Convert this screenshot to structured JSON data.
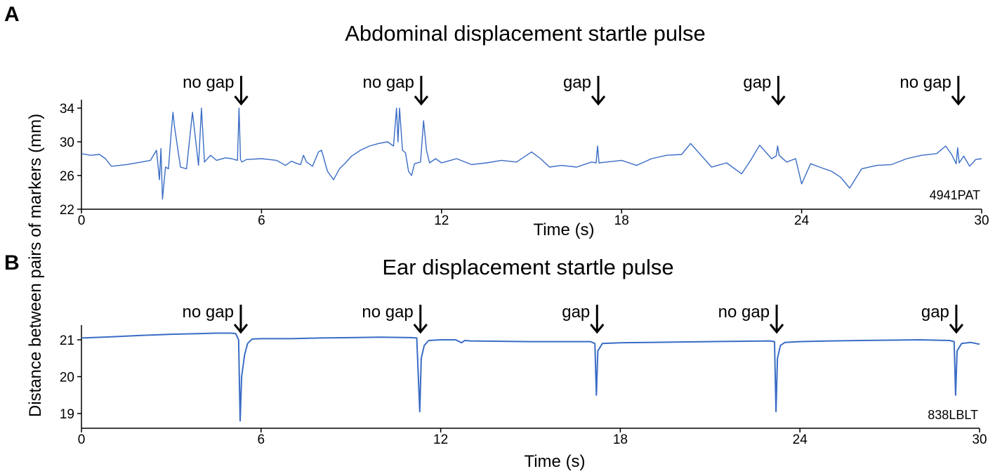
{
  "figure": {
    "y_axis_label": "Distance between pairs of markers (mm)"
  },
  "chart_data": [
    {
      "panel": "A",
      "type": "line",
      "title": "Abdominal displacement startle pulse",
      "xlabel": "Time (s)",
      "xlim": [
        0,
        30
      ],
      "xticks": [
        0,
        6,
        12,
        18,
        24,
        30
      ],
      "ylim": [
        22,
        35
      ],
      "yticks": [
        22,
        26,
        30,
        34
      ],
      "id_label": "4941PAT",
      "series_color": "#3a6cc5",
      "annotations": [
        {
          "label": "no gap",
          "x": 5.3
        },
        {
          "label": "no gap",
          "x": 11.3
        },
        {
          "label": "gap",
          "x": 17.2
        },
        {
          "label": "gap",
          "x": 23.2
        },
        {
          "label": "no gap",
          "x": 29.2
        }
      ],
      "series": [
        {
          "x": [
            0,
            0.3,
            0.6,
            0.8,
            1.0,
            1.5,
            2.0,
            2.3,
            2.5,
            2.6,
            2.65,
            2.7,
            2.8,
            2.9,
            3.0,
            3.05,
            3.1,
            3.3,
            3.5,
            3.7,
            3.9,
            4.0,
            4.1,
            4.3,
            4.5,
            4.8,
            5.0,
            5.2,
            5.25,
            5.3,
            5.35,
            5.5,
            6.0,
            6.5,
            6.7,
            6.8,
            7.0,
            7.2,
            7.3,
            7.4,
            7.5,
            7.7,
            7.9,
            8.0,
            8.2,
            8.4,
            8.6,
            8.8,
            9.0,
            9.3,
            9.6,
            9.9,
            10.2,
            10.4,
            10.5,
            10.55,
            10.6,
            10.7,
            10.8,
            10.9,
            11.0,
            11.1,
            11.3,
            11.4,
            11.5,
            11.6,
            11.8,
            12.0,
            12.5,
            13.0,
            13.5,
            14.0,
            14.5,
            15.0,
            15.3,
            15.6,
            16.0,
            16.5,
            17.0,
            17.15,
            17.2,
            17.25,
            17.5,
            18.0,
            18.5,
            19.0,
            19.5,
            20.0,
            20.3,
            20.6,
            21.0,
            21.5,
            22.0,
            22.3,
            22.6,
            23.0,
            23.15,
            23.2,
            23.25,
            23.5,
            23.8,
            24.0,
            24.3,
            24.6,
            25.0,
            25.3,
            25.6,
            26.0,
            26.5,
            27.0,
            27.5,
            28.0,
            28.5,
            28.8,
            29.0,
            29.15,
            29.2,
            29.25,
            29.4,
            29.6,
            29.8,
            30.0
          ],
          "y": [
            28.6,
            28.4,
            28.5,
            28.0,
            27.1,
            27.3,
            27.6,
            27.8,
            29.0,
            25.5,
            29.2,
            23.2,
            27.0,
            26.8,
            31.5,
            33.5,
            31.8,
            27.0,
            26.8,
            33.5,
            27.2,
            34.0,
            27.6,
            28.4,
            27.8,
            28.1,
            28.0,
            27.8,
            34.0,
            27.9,
            27.6,
            27.9,
            28.0,
            27.8,
            27.4,
            27.2,
            27.7,
            27.4,
            27.3,
            28.4,
            27.6,
            27.1,
            28.8,
            29.0,
            26.5,
            25.5,
            26.8,
            27.5,
            28.3,
            29.0,
            29.5,
            29.8,
            30.0,
            29.5,
            34.0,
            30.0,
            34.0,
            29.0,
            28.7,
            26.5,
            26.0,
            27.4,
            27.6,
            32.5,
            29.0,
            27.5,
            28.0,
            27.5,
            28.0,
            27.3,
            27.5,
            27.8,
            27.6,
            28.8,
            28.0,
            27.0,
            27.2,
            27.0,
            27.6,
            27.5,
            29.5,
            27.5,
            27.6,
            27.8,
            27.2,
            28.0,
            28.4,
            28.5,
            29.8,
            28.6,
            27.0,
            27.5,
            26.2,
            27.8,
            29.6,
            28.0,
            28.3,
            29.5,
            28.4,
            27.6,
            28.0,
            25.0,
            27.4,
            27.0,
            26.5,
            25.8,
            24.5,
            26.8,
            27.2,
            27.3,
            28.0,
            28.4,
            28.6,
            29.5,
            28.5,
            27.4,
            29.3,
            27.5,
            28.3,
            27.1,
            27.9,
            28.0
          ]
        }
      ]
    },
    {
      "panel": "B",
      "type": "line",
      "title": "Ear displacement startle pulse",
      "xlabel": "Time (s)",
      "xlim": [
        0,
        30
      ],
      "xticks": [
        0,
        6,
        12,
        18,
        24,
        30
      ],
      "ylim": [
        18.6,
        21.4
      ],
      "yticks": [
        19,
        20,
        21
      ],
      "id_label": "838LBLT",
      "series_color": "#3a6cc5",
      "annotations": [
        {
          "label": "no gap",
          "x": 5.3
        },
        {
          "label": "no gap",
          "x": 11.3
        },
        {
          "label": "gap",
          "x": 17.2
        },
        {
          "label": "no gap",
          "x": 23.2
        },
        {
          "label": "gap",
          "x": 29.2
        }
      ],
      "series": [
        {
          "x": [
            0,
            1.0,
            2.0,
            3.0,
            4.0,
            4.5,
            5.0,
            5.15,
            5.25,
            5.3,
            5.35,
            5.45,
            5.55,
            5.7,
            6.0,
            7.0,
            8.0,
            9.0,
            10.0,
            11.0,
            11.2,
            11.3,
            11.35,
            11.45,
            11.6,
            12.0,
            12.5,
            12.7,
            12.8,
            13.0,
            14.0,
            15.0,
            16.0,
            17.0,
            17.15,
            17.2,
            17.25,
            17.4,
            18.0,
            19.0,
            20.0,
            21.0,
            22.0,
            23.0,
            23.15,
            23.2,
            23.25,
            23.35,
            23.5,
            24.0,
            25.0,
            26.0,
            27.0,
            28.0,
            29.0,
            29.15,
            29.2,
            29.25,
            29.4,
            29.7,
            30.0
          ],
          "y": [
            21.05,
            21.08,
            21.12,
            21.15,
            21.17,
            21.18,
            21.18,
            21.17,
            21.0,
            18.8,
            20.0,
            20.6,
            20.9,
            21.02,
            21.03,
            21.03,
            21.05,
            21.06,
            21.07,
            21.06,
            21.05,
            19.05,
            20.5,
            20.85,
            20.98,
            21.0,
            21.0,
            20.92,
            20.98,
            20.97,
            20.96,
            20.95,
            20.95,
            20.95,
            20.9,
            19.5,
            20.7,
            20.9,
            20.92,
            20.93,
            20.94,
            20.95,
            20.96,
            20.97,
            20.95,
            19.05,
            20.5,
            20.85,
            20.93,
            20.95,
            20.97,
            20.98,
            20.99,
            21.0,
            20.98,
            20.95,
            19.5,
            20.7,
            20.9,
            20.93,
            20.88
          ]
        }
      ]
    }
  ]
}
